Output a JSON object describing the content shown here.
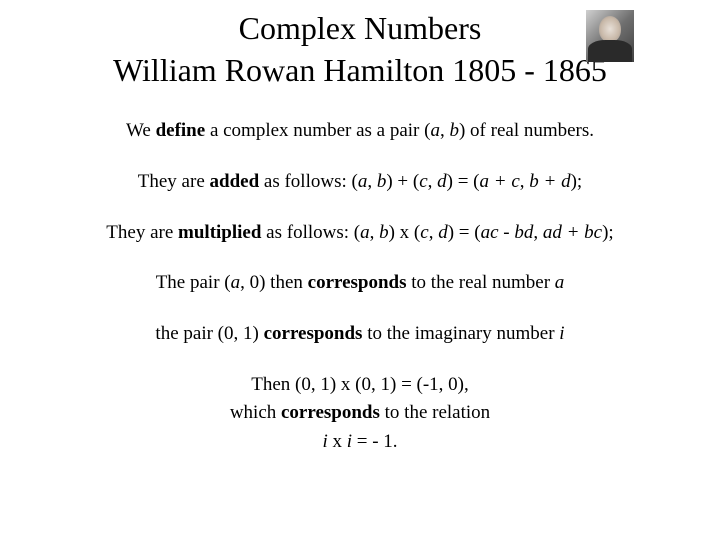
{
  "slide": {
    "title_line1": "Complex Numbers",
    "title_line2": "William Rowan Hamilton 1805 - 1865",
    "lines": {
      "l1_pre": "We ",
      "l1_bold": "define",
      "l1_mid": " a complex number as a pair (",
      "l1_a": "a",
      "l1_comma1": ", ",
      "l1_b": "b",
      "l1_post": ") of real numbers.",
      "l2_pre": "They are ",
      "l2_bold": "added",
      "l2_mid": " as follows: (",
      "l2_a": "a",
      "l2_c1": ", ",
      "l2_b": "b",
      "l2_plus1": ") + (",
      "l2_c": "c",
      "l2_c2": ", ",
      "l2_d": "d",
      "l2_eq": ") = (",
      "l2_ac": "a + c",
      "l2_c3": ", ",
      "l2_bd": "b + d",
      "l2_post": ");",
      "l3_pre": "They are ",
      "l3_bold": "multiplied",
      "l3_mid": " as follows: (",
      "l3_a": "a",
      "l3_c1": ", ",
      "l3_b": "b",
      "l3_x": ") x (",
      "l3_c": "c",
      "l3_c2": ", ",
      "l3_d": "d",
      "l3_eq": ") = (",
      "l3_acbd": "ac - bd",
      "l3_c3": ", ",
      "l3_adbc": "ad + bc",
      "l3_post": ");",
      "l4_pre": "The pair (",
      "l4_a": "a",
      "l4_c1": ", 0) then ",
      "l4_bold": "corresponds",
      "l4_mid": " to the real number ",
      "l4_a2": "a",
      "l5_pre": "the pair (0, 1) ",
      "l5_bold": "corresponds",
      "l5_mid": " to the imaginary number ",
      "l5_i": "i",
      "l6": "Then (0, 1) x (0, 1) = (-1, 0),",
      "l7_pre": "which ",
      "l7_bold": "corresponds",
      "l7_post": " to the relation",
      "l8_i1": "i",
      "l8_mid": "  x ",
      "l8_i2": "i",
      "l8_post": " = - 1."
    },
    "colors": {
      "background": "#ffffff",
      "text": "#000000"
    },
    "typography": {
      "title_fontsize": 32,
      "body_fontsize": 19,
      "font_family": "Georgia, Times New Roman, serif"
    }
  }
}
